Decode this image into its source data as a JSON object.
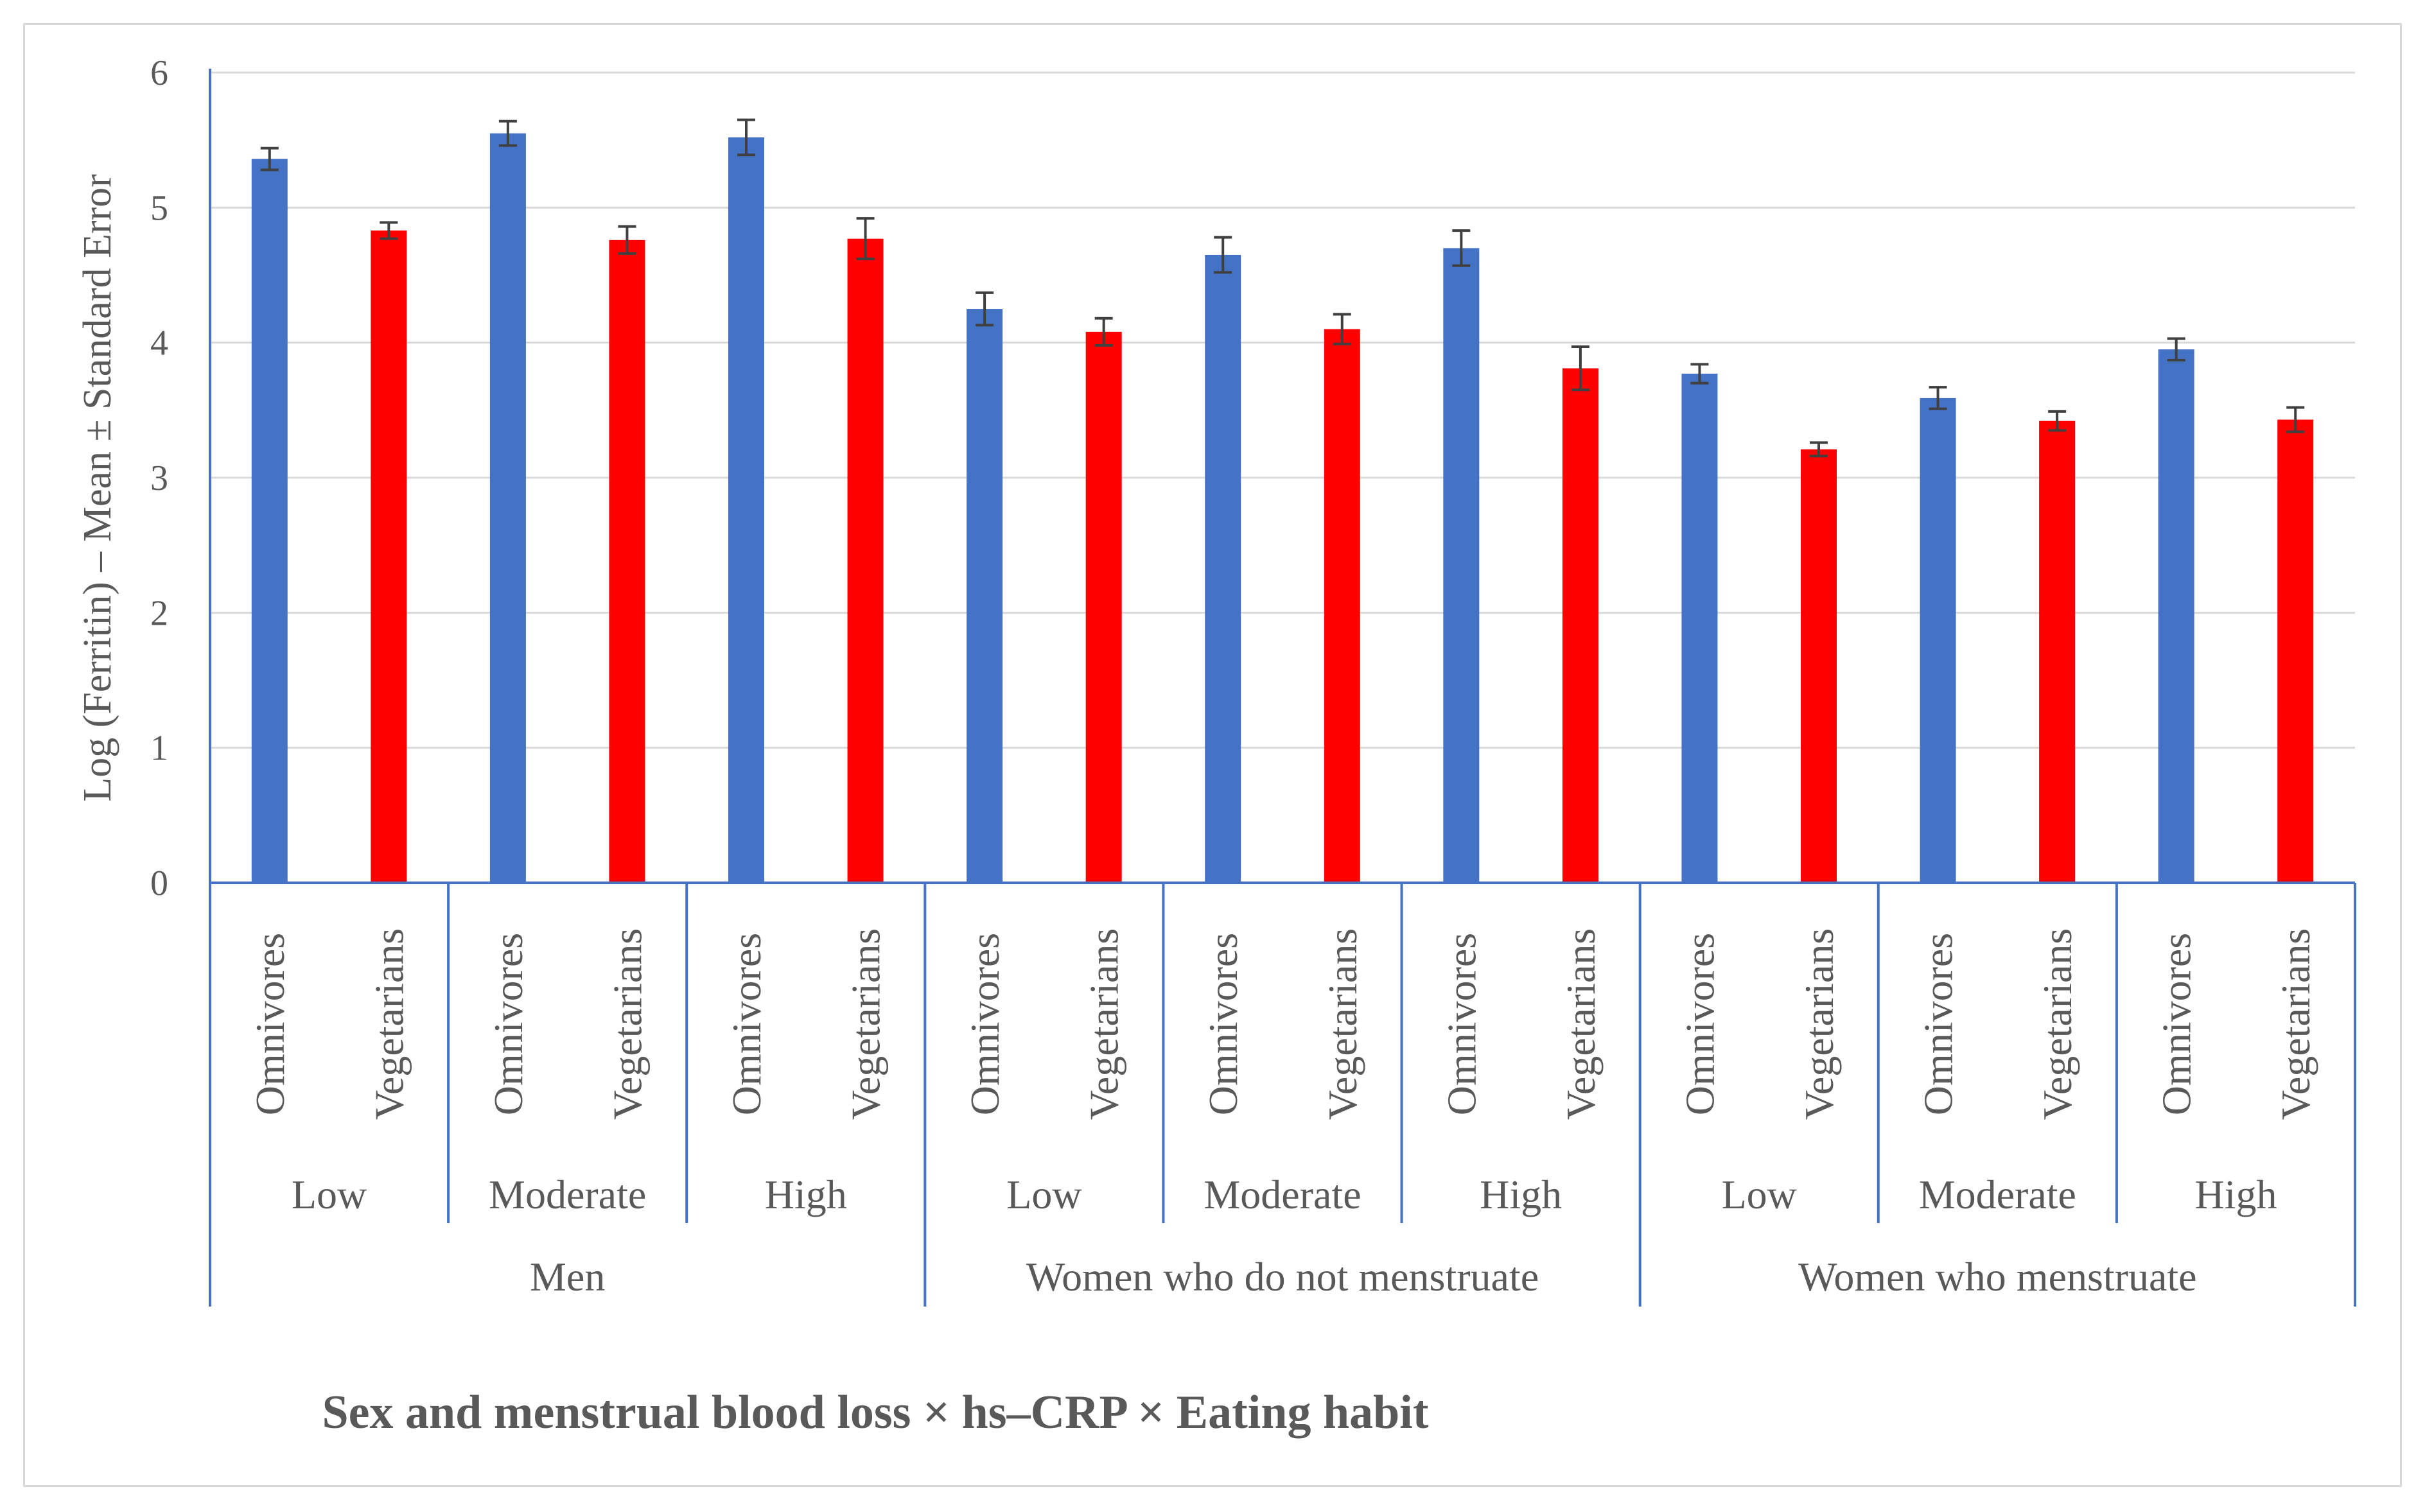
{
  "chart_data": {
    "type": "bar",
    "title": "",
    "xlabel": "Sex and menstrual blood loss  ×  hs–CRP  ×  Eating habit",
    "ylabel": "Log (Ferritin) – Mean ± Standard Error",
    "ylim": [
      0,
      6
    ],
    "yticks": [
      "0",
      "1",
      "2",
      "3",
      "4",
      "5",
      "6"
    ],
    "grid": true,
    "colors": {
      "Omnivores": "#4472c4",
      "Vegetarians": "#ff0000",
      "axis": "#4472c4",
      "grid": "#d9d9d9",
      "error_bar": "#404040",
      "text": "#595959"
    },
    "groups": [
      {
        "label": "Men",
        "subgroups": [
          {
            "label": "Low",
            "bars": [
              {
                "category": "Omnivores",
                "value": 5.36,
                "error": 0.08
              },
              {
                "category": "Vegetarians",
                "value": 4.83,
                "error": 0.06
              }
            ]
          },
          {
            "label": "Moderate",
            "bars": [
              {
                "category": "Omnivores",
                "value": 5.55,
                "error": 0.09
              },
              {
                "category": "Vegetarians",
                "value": 4.76,
                "error": 0.1
              }
            ]
          },
          {
            "label": "High",
            "bars": [
              {
                "category": "Omnivores",
                "value": 5.52,
                "error": 0.13
              },
              {
                "category": "Vegetarians",
                "value": 4.77,
                "error": 0.15
              }
            ]
          }
        ]
      },
      {
        "label": "Women who do not menstruate",
        "subgroups": [
          {
            "label": "Low",
            "bars": [
              {
                "category": "Omnivores",
                "value": 4.25,
                "error": 0.12
              },
              {
                "category": "Vegetarians",
                "value": 4.08,
                "error": 0.1
              }
            ]
          },
          {
            "label": "Moderate",
            "bars": [
              {
                "category": "Omnivores",
                "value": 4.65,
                "error": 0.13
              },
              {
                "category": "Vegetarians",
                "value": 4.1,
                "error": 0.11
              }
            ]
          },
          {
            "label": "High",
            "bars": [
              {
                "category": "Omnivores",
                "value": 4.7,
                "error": 0.13
              },
              {
                "category": "Vegetarians",
                "value": 3.81,
                "error": 0.16
              }
            ]
          }
        ]
      },
      {
        "label": "Women who menstruate",
        "subgroups": [
          {
            "label": "Low",
            "bars": [
              {
                "category": "Omnivores",
                "value": 3.77,
                "error": 0.07
              },
              {
                "category": "Vegetarians",
                "value": 3.21,
                "error": 0.05
              }
            ]
          },
          {
            "label": "Moderate",
            "bars": [
              {
                "category": "Omnivores",
                "value": 3.59,
                "error": 0.08
              },
              {
                "category": "Vegetarians",
                "value": 3.42,
                "error": 0.07
              }
            ]
          },
          {
            "label": "High",
            "bars": [
              {
                "category": "Omnivores",
                "value": 3.95,
                "error": 0.08
              },
              {
                "category": "Vegetarians",
                "value": 3.43,
                "error": 0.09
              }
            ]
          }
        ]
      }
    ]
  }
}
